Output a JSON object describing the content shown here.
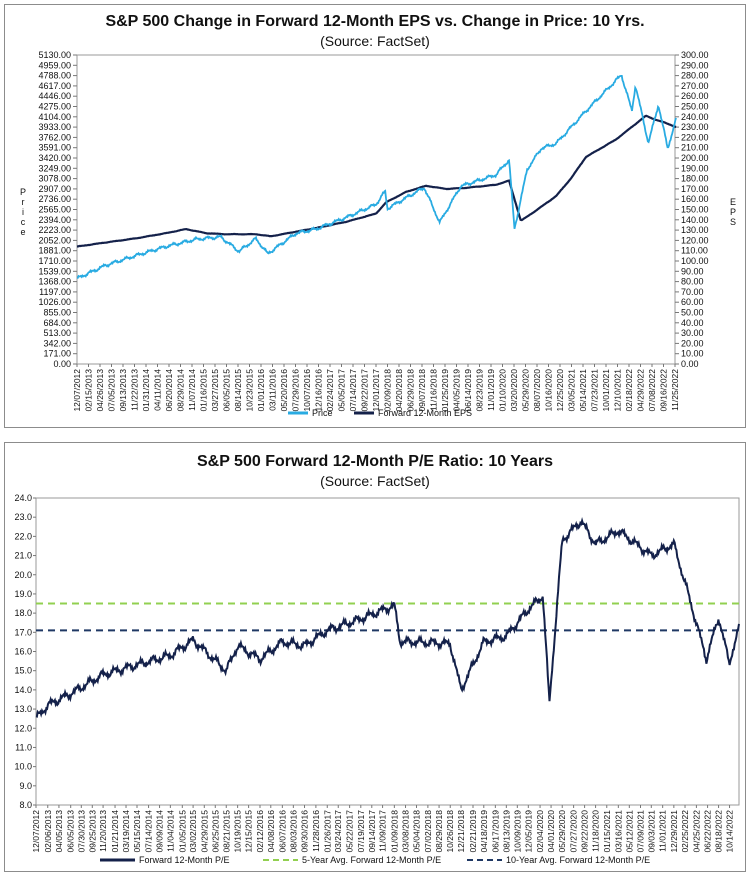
{
  "chart_data": [
    {
      "type": "line",
      "title": "S&P 500 Change in Forward 12-Month EPS vs. Change in Price: 10 Yrs.",
      "subtitle": "(Source: FactSet)",
      "ylabel": "Price",
      "y2label": "EPS",
      "ylim": [
        0,
        5130
      ],
      "y2lim": [
        0,
        300
      ],
      "yticks": [
        "0.00",
        "171.00",
        "342.00",
        "513.00",
        "684.00",
        "855.00",
        "1026.00",
        "1197.00",
        "1368.00",
        "1539.00",
        "1710.00",
        "1881.00",
        "2052.00",
        "2223.00",
        "2394.00",
        "2565.00",
        "2736.00",
        "2907.00",
        "3078.00",
        "3249.00",
        "3420.00",
        "3591.00",
        "3762.00",
        "3933.00",
        "4104.00",
        "4275.00",
        "4446.00",
        "4617.00",
        "4788.00",
        "4959.00",
        "5130.00"
      ],
      "y2ticks": [
        "0.00",
        "10.00",
        "20.00",
        "30.00",
        "40.00",
        "50.00",
        "60.00",
        "70.00",
        "80.00",
        "90.00",
        "100.00",
        "110.00",
        "120.00",
        "130.00",
        "140.00",
        "150.00",
        "160.00",
        "170.00",
        "180.00",
        "190.00",
        "200.00",
        "210.00",
        "220.00",
        "230.00",
        "240.00",
        "250.00",
        "260.00",
        "270.00",
        "280.00",
        "290.00",
        "300.00"
      ],
      "xticks": [
        "12/07/2012",
        "02/15/2013",
        "04/26/2013",
        "07/05/2013",
        "09/13/2013",
        "11/22/2013",
        "01/31/2014",
        "04/11/2014",
        "06/20/2014",
        "08/29/2014",
        "11/07/2014",
        "01/16/2015",
        "03/27/2015",
        "06/05/2015",
        "08/14/2015",
        "10/23/2015",
        "01/01/2016",
        "03/11/2016",
        "05/20/2016",
        "07/29/2016",
        "10/07/2016",
        "12/16/2016",
        "02/24/2017",
        "05/05/2017",
        "07/14/2017",
        "09/22/2017",
        "12/01/2017",
        "02/09/2018",
        "04/20/2018",
        "06/29/2018",
        "09/07/2018",
        "11/16/2018",
        "01/25/2019",
        "04/05/2019",
        "06/14/2019",
        "08/23/2019",
        "11/01/2019",
        "01/10/2020",
        "03/20/2020",
        "05/29/2020",
        "08/07/2020",
        "10/16/2020",
        "12/25/2020",
        "03/05/2021",
        "05/14/2021",
        "07/23/2021",
        "10/01/2021",
        "12/10/2021",
        "02/18/2022",
        "04/29/2022",
        "07/08/2022",
        "09/16/2022",
        "11/25/2022"
      ],
      "grid": false,
      "legend_position": "bottom",
      "series": [
        {
          "name": "Price",
          "axis": "left",
          "color": "#29abe2",
          "x": [
            "12/07/2012",
            "06/01/2013",
            "12/01/2013",
            "06/01/2014",
            "12/01/2014",
            "05/01/2015",
            "08/20/2015",
            "12/01/2015",
            "02/11/2016",
            "08/01/2016",
            "12/01/2016",
            "06/01/2017",
            "12/01/2017",
            "01/26/2018",
            "02/08/2018",
            "09/20/2018",
            "12/24/2018",
            "04/30/2019",
            "12/01/2019",
            "02/19/2020",
            "03/23/2020",
            "06/08/2020",
            "09/02/2020",
            "12/01/2020",
            "06/01/2021",
            "01/03/2022",
            "03/08/2022",
            "03/29/2022",
            "06/16/2022",
            "08/16/2022",
            "10/12/2022",
            "12/02/2022"
          ],
          "values": [
            1418,
            1640,
            1800,
            1950,
            2070,
            2110,
            1870,
            2080,
            1830,
            2170,
            2240,
            2430,
            2650,
            2870,
            2580,
            2930,
            2350,
            2950,
            3140,
            3390,
            2240,
            3230,
            3580,
            3660,
            4200,
            4800,
            4200,
            4630,
            3670,
            4300,
            3580,
            4070
          ]
        },
        {
          "name": "Forward 12-Month EPS",
          "axis": "right",
          "color": "#14214a",
          "x": [
            "12/07/2012",
            "06/01/2013",
            "12/01/2013",
            "06/01/2014",
            "10/01/2014",
            "02/01/2015",
            "06/01/2015",
            "12/01/2015",
            "03/01/2016",
            "12/01/2016",
            "06/01/2017",
            "12/01/2017",
            "02/01/2018",
            "06/01/2018",
            "10/01/2018",
            "02/01/2019",
            "06/01/2019",
            "12/01/2019",
            "02/19/2020",
            "05/01/2020",
            "08/01/2020",
            "12/01/2020",
            "03/01/2021",
            "06/01/2021",
            "12/01/2021",
            "06/01/2022",
            "08/01/2022",
            "10/01/2022",
            "12/02/2022"
          ],
          "values": [
            114,
            118,
            122,
            127,
            131,
            127,
            126,
            126,
            124,
            132,
            138,
            146,
            157,
            167,
            173,
            170,
            171,
            174,
            178,
            139,
            149,
            163,
            180,
            201,
            218,
            241,
            237,
            234,
            230
          ]
        }
      ]
    },
    {
      "type": "line",
      "title": "S&P 500 Forward 12-Month P/E Ratio: 10 Years",
      "subtitle": "(Source: FactSet)",
      "ylim": [
        8,
        24
      ],
      "yticks": [
        "8.0",
        "9.0",
        "10.0",
        "11.0",
        "12.0",
        "13.0",
        "14.0",
        "15.0",
        "16.0",
        "17.0",
        "18.0",
        "19.0",
        "20.0",
        "21.0",
        "22.0",
        "23.0",
        "24.0"
      ],
      "xticks": [
        "12/07/2012",
        "02/06/2013",
        "04/05/2013",
        "06/05/2013",
        "07/30/2013",
        "09/25/2013",
        "11/20/2013",
        "01/21/2014",
        "03/19/2014",
        "05/15/2014",
        "07/14/2014",
        "09/09/2014",
        "11/04/2014",
        "01/05/2015",
        "03/02/2015",
        "04/29/2015",
        "06/25/2015",
        "08/21/2015",
        "10/19/2015",
        "12/15/2015",
        "02/12/2016",
        "04/08/2016",
        "06/07/2016",
        "08/03/2016",
        "09/30/2016",
        "11/28/2016",
        "01/26/2017",
        "03/24/2017",
        "05/22/2017",
        "07/19/2017",
        "09/14/2017",
        "11/09/2017",
        "01/09/2018",
        "03/08/2018",
        "05/04/2018",
        "07/02/2018",
        "08/29/2018",
        "10/26/2018",
        "12/21/2018",
        "02/21/2019",
        "04/18/2019",
        "06/17/2019",
        "08/13/2019",
        "10/09/2019",
        "12/05/2019",
        "02/04/2020",
        "04/01/2020",
        "05/29/2020",
        "07/27/2020",
        "09/22/2020",
        "11/18/2020",
        "01/15/2021",
        "03/16/2021",
        "05/12/2021",
        "07/09/2021",
        "09/03/2021",
        "11/01/2021",
        "12/29/2021",
        "02/25/2022",
        "04/25/2022",
        "06/22/2022",
        "08/18/2022",
        "10/14/2022"
      ],
      "grid": false,
      "legend_position": "bottom",
      "series": [
        {
          "name": "Forward 12-Month P/E",
          "color": "#14214a",
          "x": [
            "12/07/2012",
            "02/06/2013",
            "06/05/2013",
            "11/20/2013",
            "05/15/2014",
            "11/04/2014",
            "03/02/2015",
            "08/21/2015",
            "10/19/2015",
            "02/12/2016",
            "06/07/2016",
            "09/30/2016",
            "01/26/2017",
            "07/19/2017",
            "01/09/2018",
            "02/09/2018",
            "05/04/2018",
            "10/26/2018",
            "12/21/2018",
            "04/18/2019",
            "08/13/2019",
            "12/05/2019",
            "02/19/2020",
            "03/23/2020",
            "05/29/2020",
            "09/03/2020",
            "11/18/2020",
            "03/16/2021",
            "09/03/2021",
            "12/29/2021",
            "03/08/2022",
            "06/16/2022",
            "08/18/2022",
            "10/12/2022",
            "12/02/2022"
          ],
          "values": [
            12.5,
            13.2,
            13.8,
            14.8,
            15.3,
            15.8,
            16.6,
            15.0,
            16.3,
            15.6,
            16.5,
            16.3,
            17.1,
            17.7,
            18.4,
            16.5,
            16.5,
            16.4,
            14.0,
            16.5,
            16.8,
            18.2,
            18.9,
            13.3,
            21.8,
            22.8,
            21.6,
            22.3,
            21.0,
            21.6,
            19.2,
            15.6,
            17.8,
            15.4,
            17.2
          ]
        },
        {
          "name": "5-Year Avg. Forward 12-Month P/E",
          "color": "#92d050",
          "dashed": true,
          "values": [
            18.5
          ]
        },
        {
          "name": "10-Year Avg. Forward 12-Month P/E",
          "color": "#1f3864",
          "dashed": true,
          "values": [
            17.1
          ]
        }
      ]
    }
  ]
}
